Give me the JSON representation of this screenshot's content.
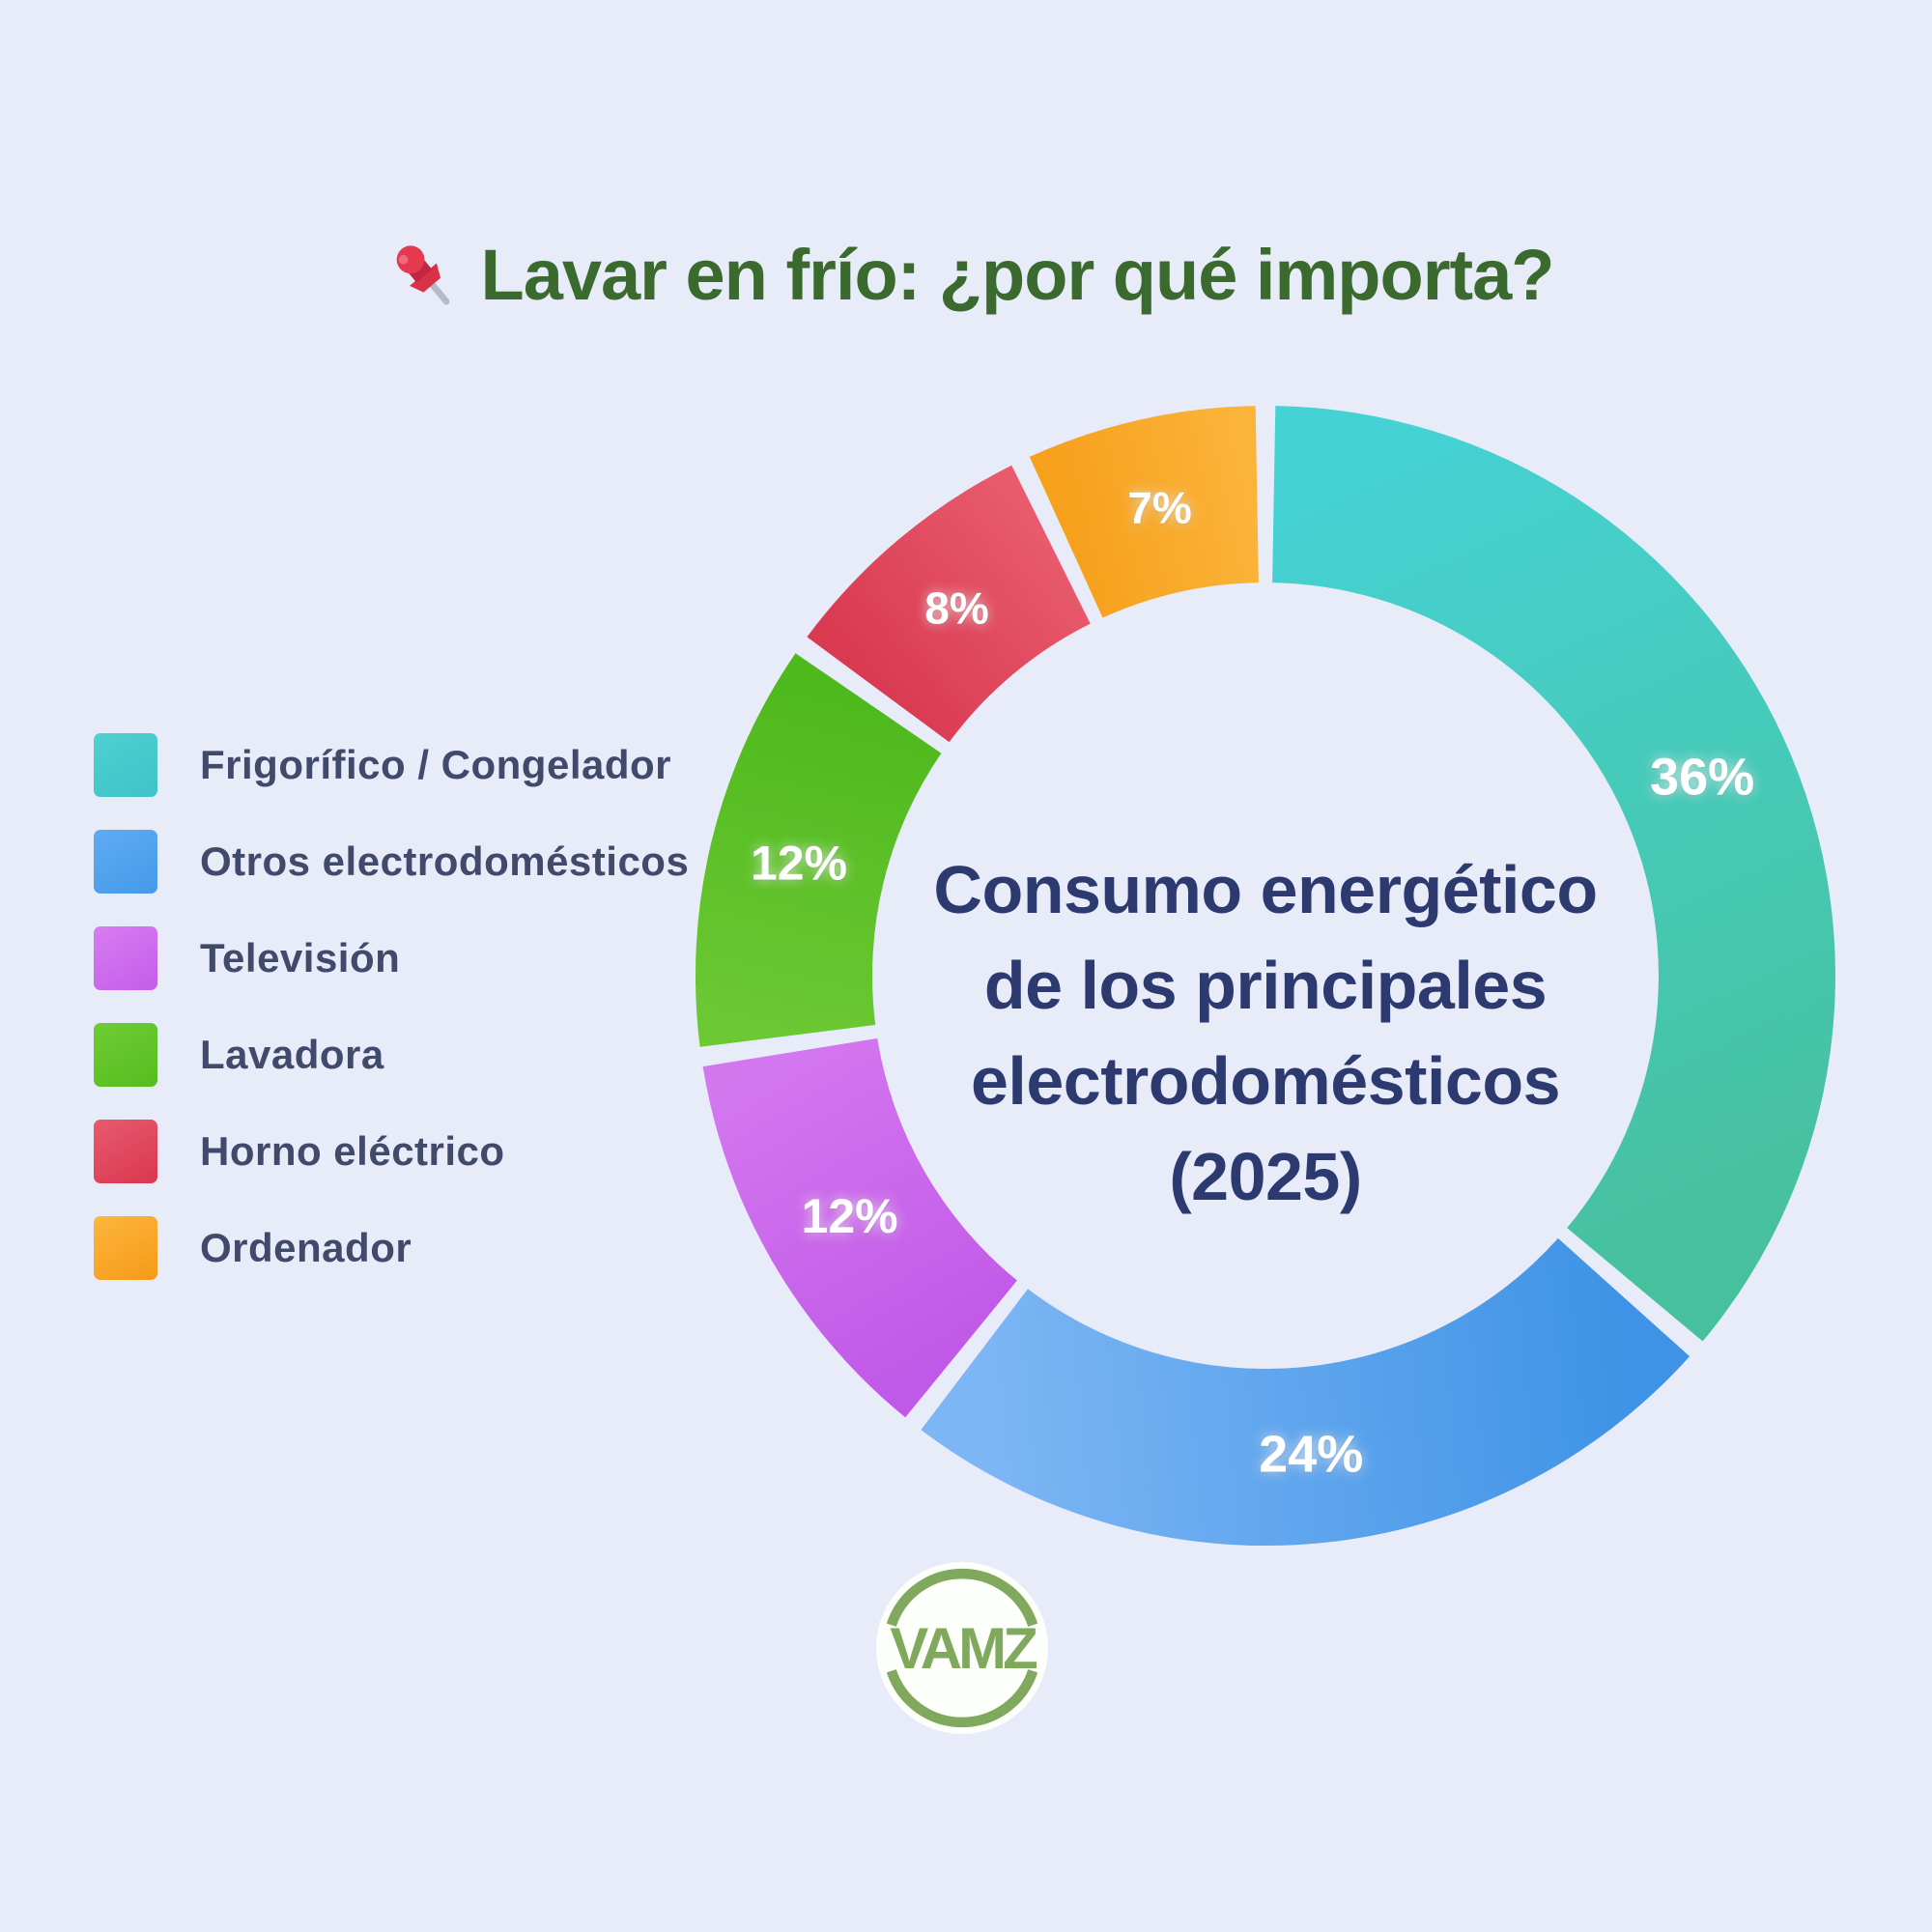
{
  "page": {
    "background_color": "#e8ebf8"
  },
  "header": {
    "title": "Lavar en frío: ¿por qué importa?",
    "title_color": "#3a6a2d",
    "icon": "pushpin-icon"
  },
  "chart_data": {
    "type": "donut",
    "title": "Consumo energético de los principales electrodomésticos (2025)",
    "center_title_lines": [
      "Consumo energético",
      "de los principales",
      "electrodomésticos",
      "(2025)"
    ],
    "center_title_color": "#2d3a70",
    "unit": "%",
    "start_angle_deg": 0,
    "direction": "clockwise",
    "legend_position": "left",
    "labels_position": "inside",
    "segments": [
      {
        "label": "Frigorífico / Congelador",
        "value": 36,
        "value_label": "36%",
        "color_start": "#45d2d4",
        "color_end": "#47c19d"
      },
      {
        "label": "Otros electrodomésticos",
        "value": 24,
        "value_label": "24%",
        "color_start": "#3e93e6",
        "color_end": "#7db6f4"
      },
      {
        "label": "Televisión",
        "value": 12,
        "value_label": "12%",
        "color_start": "#c159e8",
        "color_end": "#d377ef"
      },
      {
        "label": "Lavadora",
        "value": 12,
        "value_label": "12%",
        "color_start": "#6cc833",
        "color_end": "#4eb91d"
      },
      {
        "label": "Horno eléctrico",
        "value": 8,
        "value_label": "8%",
        "color_start": "#d93a52",
        "color_end": "#e85a6c"
      },
      {
        "label": "Ordenador",
        "value": 7,
        "value_label": "7%",
        "color_start": "#f6a01c",
        "color_end": "#fbb43a"
      }
    ]
  },
  "legend": {
    "items": [
      {
        "swatch_from": "#4fd0d0",
        "swatch_to": "#3fc3c8"
      },
      {
        "swatch_from": "#5fabf2",
        "swatch_to": "#459ae9"
      },
      {
        "swatch_from": "#d77df2",
        "swatch_to": "#c45ce9"
      },
      {
        "swatch_from": "#6fcc34",
        "swatch_to": "#55bd20"
      },
      {
        "swatch_from": "#e85a6e",
        "swatch_to": "#d93750"
      },
      {
        "swatch_from": "#fcb63d",
        "swatch_to": "#f69a18"
      }
    ]
  },
  "logo": {
    "text": "VAMZ",
    "accent_color": "#80a95e",
    "circle_color": "#fdfffb"
  }
}
